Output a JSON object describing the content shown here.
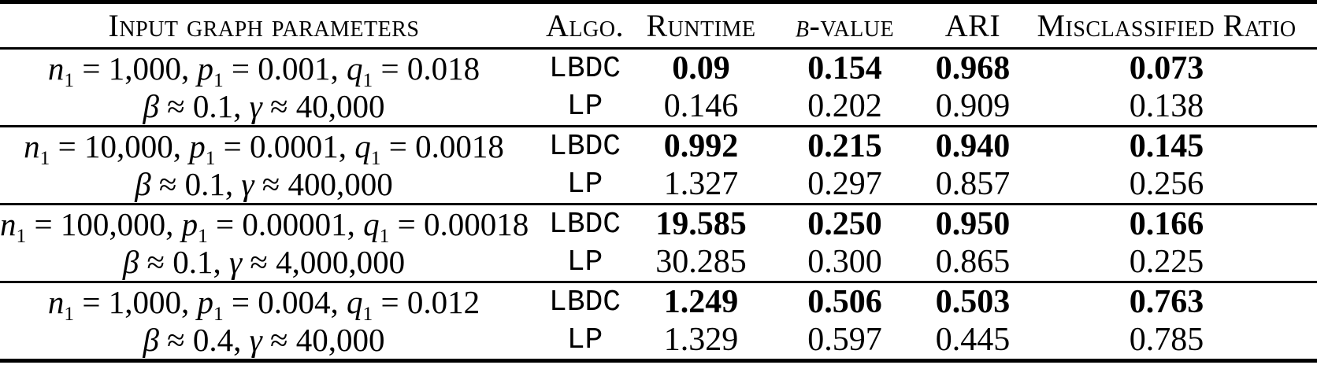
{
  "colors": {
    "text": "#000000",
    "background": "#ffffff",
    "rule": "#000000"
  },
  "table": {
    "headers": [
      {
        "label": "Input graph parameters"
      },
      {
        "label": "Algo."
      },
      {
        "label": "Runtime"
      },
      {
        "label": "β-value"
      },
      {
        "label": "ARI"
      },
      {
        "label": "Misclassified Ratio"
      }
    ],
    "groups": [
      {
        "params_line1": "n_1 = 1,000, p_1 = 0.001, q_1 = 0.018",
        "params_line2": "β ≈ 0.1, γ ≈ 40,000",
        "rows": [
          {
            "algo": "LBDC",
            "bold": true,
            "runtime": "0.09",
            "beta_value": "0.154",
            "ari": "0.968",
            "misclassified_ratio": "0.073"
          },
          {
            "algo": "LP",
            "bold": false,
            "runtime": "0.146",
            "beta_value": "0.202",
            "ari": "0.909",
            "misclassified_ratio": "0.138"
          }
        ]
      },
      {
        "params_line1": "n_1 = 10,000, p_1 = 0.0001, q_1 = 0.0018",
        "params_line2": "β ≈ 0.1, γ ≈ 400,000",
        "rows": [
          {
            "algo": "LBDC",
            "bold": true,
            "runtime": "0.992",
            "beta_value": "0.215",
            "ari": "0.940",
            "misclassified_ratio": "0.145"
          },
          {
            "algo": "LP",
            "bold": false,
            "runtime": "1.327",
            "beta_value": "0.297",
            "ari": "0.857",
            "misclassified_ratio": "0.256"
          }
        ]
      },
      {
        "params_line1": "n_1 = 100,000, p_1 = 0.00001, q_1 = 0.00018",
        "params_line2": "β ≈ 0.1, γ ≈ 4,000,000",
        "rows": [
          {
            "algo": "LBDC",
            "bold": true,
            "runtime": "19.585",
            "beta_value": "0.250",
            "ari": "0.950",
            "misclassified_ratio": "0.166"
          },
          {
            "algo": "LP",
            "bold": false,
            "runtime": "30.285",
            "beta_value": "0.300",
            "ari": "0.865",
            "misclassified_ratio": "0.225"
          }
        ]
      },
      {
        "params_line1": "n_1 = 1,000, p_1 = 0.004, q_1 = 0.012",
        "params_line2": "β ≈ 0.4, γ ≈ 40,000",
        "rows": [
          {
            "algo": "LBDC",
            "bold": true,
            "runtime": "1.249",
            "beta_value": "0.506",
            "ari": "0.503",
            "misclassified_ratio": "0.763"
          },
          {
            "algo": "LP",
            "bold": false,
            "runtime": "1.329",
            "beta_value": "0.597",
            "ari": "0.445",
            "misclassified_ratio": "0.785"
          }
        ]
      }
    ]
  }
}
